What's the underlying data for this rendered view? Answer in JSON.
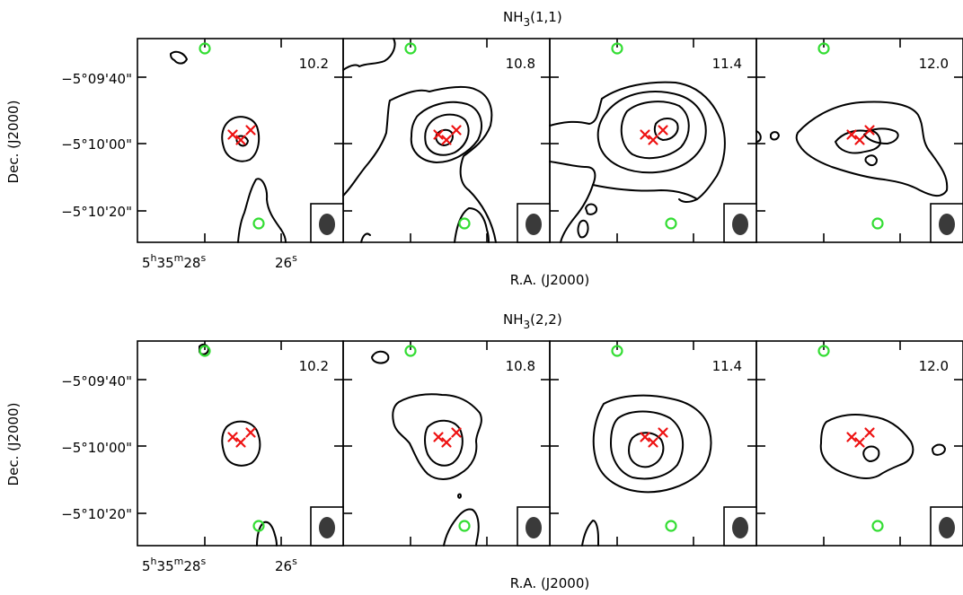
{
  "rows": [
    {
      "title_main": "NH",
      "title_sub": "3",
      "title_tail": "(1,1)",
      "panels": [
        {
          "velocity": "10.2"
        },
        {
          "velocity": "10.8"
        },
        {
          "velocity": "11.4"
        },
        {
          "velocity": "12.0"
        }
      ]
    },
    {
      "title_main": "NH",
      "title_sub": "3",
      "title_tail": "(2,2)",
      "panels": [
        {
          "velocity": "10.2"
        },
        {
          "velocity": "10.8"
        },
        {
          "velocity": "11.4"
        },
        {
          "velocity": "12.0"
        }
      ]
    }
  ],
  "axes": {
    "y_label": "Dec. (J2000)",
    "y_ticks": [
      "−5°09'40\"",
      "−5°10'00\"",
      "−5°10'20\""
    ],
    "x_label": "R.A. (J2000)",
    "x_tick_1": {
      "h": "5",
      "hs": "h",
      "m": "35",
      "ms": "m",
      "s": "28",
      "ss": "s"
    },
    "x_tick_2": {
      "s": "26",
      "ss": "s"
    }
  },
  "markers": {
    "source_color": "#ee1111",
    "reference_color": "#33dd33",
    "beam_color": "#3a3a3a"
  }
}
